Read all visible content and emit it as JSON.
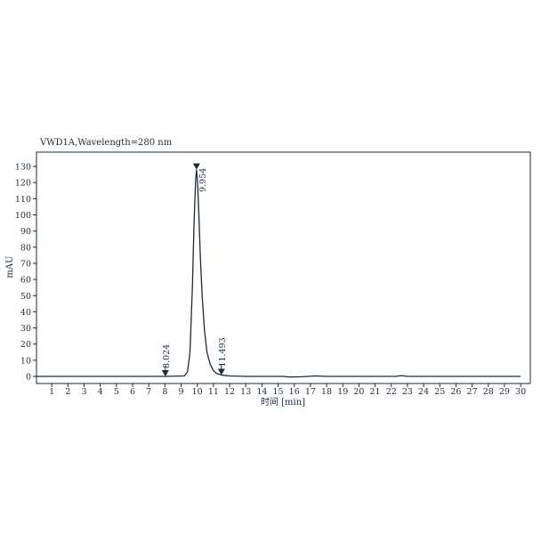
{
  "chart_data": {
    "type": "line",
    "title": "VWD1A,Wavelength=280 nm",
    "xlabel": "时间 [min]",
    "ylabel": "mAU",
    "xlim": [
      0,
      30
    ],
    "ylim": [
      -3,
      140
    ],
    "xticks": [
      1,
      2,
      3,
      4,
      5,
      6,
      7,
      8,
      9,
      10,
      11,
      12,
      13,
      14,
      15,
      16,
      17,
      18,
      19,
      20,
      21,
      22,
      23,
      24,
      25,
      26,
      27,
      28,
      29,
      30
    ],
    "yticks": [
      0,
      10,
      20,
      30,
      40,
      50,
      60,
      70,
      80,
      90,
      100,
      110,
      120,
      130
    ],
    "grid": false,
    "line_color": "#1c2b3a",
    "series": [
      {
        "x": [
          0,
          8.0,
          9.2,
          9.4,
          9.55,
          9.7,
          9.8,
          9.9,
          9.954,
          10.02,
          10.1,
          10.2,
          10.3,
          10.45,
          10.6,
          10.8,
          11.0,
          11.2,
          11.5,
          12.0,
          13.0,
          15.3,
          15.7,
          16.5,
          17.3,
          18.0,
          22.3,
          22.6,
          23.0,
          30.0
        ],
        "y": [
          0,
          0,
          0.3,
          3,
          15,
          55,
          95,
          122,
          128,
          120,
          100,
          72,
          50,
          28,
          15,
          7.5,
          3.5,
          1.8,
          0.8,
          0.3,
          0,
          0,
          -0.4,
          -0.2,
          0.3,
          0,
          0,
          0.5,
          0,
          0
        ]
      }
    ],
    "annotations": [
      {
        "x": 8.024,
        "y": 0,
        "label": "8.024"
      },
      {
        "x": 9.954,
        "y": 128,
        "label": "9.954"
      },
      {
        "x": 11.493,
        "y": 0.8,
        "label": "11.493"
      }
    ]
  }
}
